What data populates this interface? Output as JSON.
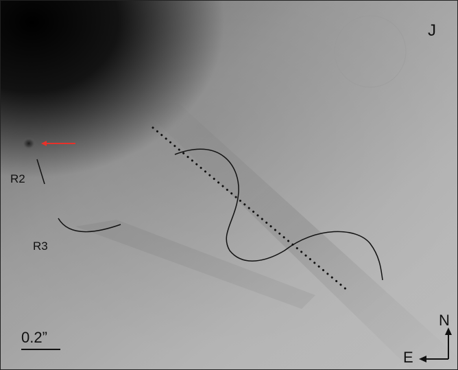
{
  "image": {
    "band_label": "J",
    "source_labels": [
      "R2",
      "R3"
    ],
    "scale_bar_label": "0.2”",
    "compass": {
      "north": "N",
      "east": "E"
    },
    "colors": {
      "arrow": "#e8312a",
      "annotation": "#111111"
    }
  }
}
